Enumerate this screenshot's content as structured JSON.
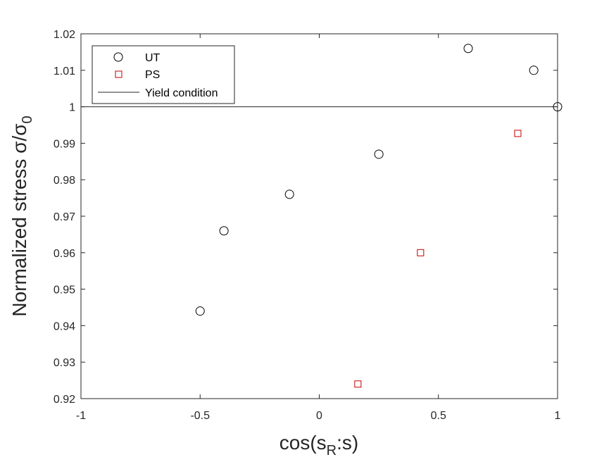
{
  "chart_data": {
    "type": "scatter",
    "xlabel": "cos(s_R:s)",
    "xlabel_main": "cos(s",
    "xlabel_sub": "R",
    "xlabel_tail": ":s)",
    "ylabel": "Normalized stress σ/σ_0",
    "ylabel_main": "Normalized stress σ/σ",
    "ylabel_sub": "0",
    "xlim": [
      -1,
      1
    ],
    "ylim": [
      0.92,
      1.02
    ],
    "xticks": [
      -1,
      -0.5,
      0,
      0.5,
      1
    ],
    "xtick_labels": [
      "-1",
      "-0.5",
      "0",
      "0.5",
      "1"
    ],
    "yticks": [
      0.92,
      0.93,
      0.94,
      0.95,
      0.96,
      0.97,
      0.98,
      0.99,
      1.0,
      1.01,
      1.02
    ],
    "ytick_labels": [
      "0.92",
      "0.93",
      "0.94",
      "0.95",
      "0.96",
      "0.97",
      "0.98",
      "0.99",
      "1",
      "1.01",
      "1.02"
    ],
    "grid": false,
    "legend_position": "top-left",
    "series": [
      {
        "name": "UT",
        "marker": "circle",
        "color": "#000000",
        "x": [
          -0.5,
          -0.4,
          -0.125,
          0.25,
          0.625,
          0.9,
          1.0
        ],
        "y": [
          0.944,
          0.966,
          0.976,
          0.987,
          1.016,
          1.01,
          1.0
        ]
      },
      {
        "name": "PS",
        "marker": "square",
        "color": "#c00000",
        "x": [
          0.162,
          0.425,
          0.833
        ],
        "y": [
          0.924,
          0.96,
          0.9927
        ]
      },
      {
        "name": "Yield condition",
        "marker": "line",
        "color": "#262626",
        "y_constant": 1.0
      }
    ]
  }
}
